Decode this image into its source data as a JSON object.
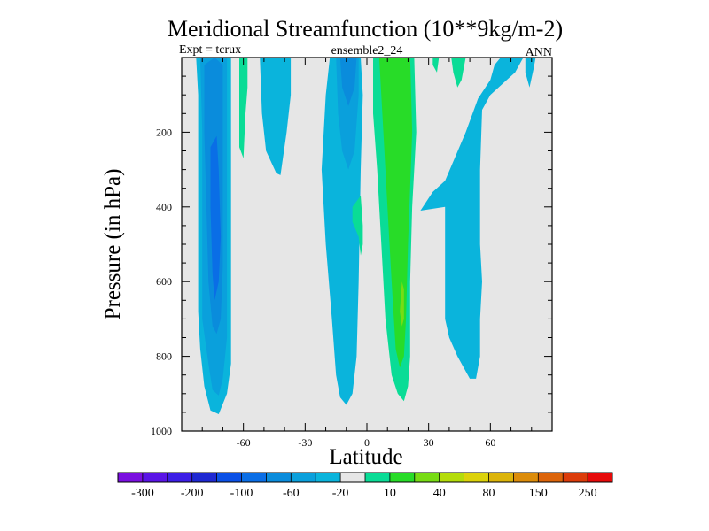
{
  "chart_data": {
    "type": "contour",
    "title": "Meridional Streamfunction (10**9kg/m-2)",
    "subtitle_left": "Expt = tcrux",
    "subtitle_center": "ensemble2_24",
    "subtitle_right": "ANN",
    "xlabel": "Latitude",
    "ylabel": "Pressure (in hPa)",
    "xlim": [
      -90,
      90
    ],
    "ylim": [
      1000,
      0
    ],
    "y_inverted": true,
    "xticks": [
      -60,
      -30,
      0,
      30,
      60
    ],
    "yticks": [
      200,
      400,
      600,
      800,
      1000
    ],
    "background_color": "#e6e6e6",
    "colorbar": {
      "colors": [
        "#7a0fe0",
        "#5a14e6",
        "#3c1ee6",
        "#1e28d2",
        "#0a50e6",
        "#0a6ee6",
        "#0a8cdc",
        "#0aa0dc",
        "#0ab4dc",
        "#e6e6e6",
        "#0adc96",
        "#28dc28",
        "#78dc14",
        "#b4dc0a",
        "#dcd20a",
        "#dcb40a",
        "#dc8c0a",
        "#dc640a",
        "#dc3c0a",
        "#e60a0a"
      ],
      "labels": [
        "-300",
        "-200",
        "-100",
        "-60",
        "-20",
        "10",
        "40",
        "80",
        "150",
        "250"
      ]
    },
    "regions": [
      {
        "name": "sh-cell-outer",
        "level": -20,
        "color": "#0ab4dc",
        "points": [
          [
            -83,
            0
          ],
          [
            -72,
            0
          ],
          [
            -66,
            0
          ],
          [
            -66,
            150
          ],
          [
            -66,
            500
          ],
          [
            -66,
            700
          ],
          [
            -66,
            820
          ],
          [
            -68,
            900
          ],
          [
            -72,
            955
          ],
          [
            -76,
            945
          ],
          [
            -79,
            880
          ],
          [
            -81,
            780
          ],
          [
            -82,
            680
          ],
          [
            -82,
            500
          ],
          [
            -82,
            250
          ],
          [
            -82,
            100
          ]
        ]
      },
      {
        "name": "sh-cell-mid",
        "level": -60,
        "color": "#0aa0dc",
        "points": [
          [
            -81,
            0
          ],
          [
            -72,
            0
          ],
          [
            -68,
            0
          ],
          [
            -68,
            200
          ],
          [
            -68,
            500
          ],
          [
            -68,
            750
          ],
          [
            -70,
            860
          ],
          [
            -72,
            905
          ],
          [
            -75,
            890
          ],
          [
            -77,
            820
          ],
          [
            -80,
            700
          ],
          [
            -80,
            500
          ],
          [
            -80,
            200
          ]
        ]
      },
      {
        "name": "sh-cell-core",
        "level": -100,
        "color": "#0a8cdc",
        "points": [
          [
            -79,
            20
          ],
          [
            -74,
            0
          ],
          [
            -70,
            20
          ],
          [
            -70,
            300
          ],
          [
            -70,
            560
          ],
          [
            -71,
            700
          ],
          [
            -73,
            740
          ],
          [
            -75,
            720
          ],
          [
            -77,
            600
          ],
          [
            -78,
            400
          ],
          [
            -79,
            200
          ]
        ]
      },
      {
        "name": "sh-cell-max",
        "level": -150,
        "color": "#0a6ee6",
        "points": [
          [
            -76,
            240
          ],
          [
            -73,
            210
          ],
          [
            -72,
            300
          ],
          [
            -71,
            480
          ],
          [
            -72,
            600
          ],
          [
            -74,
            650
          ],
          [
            -75,
            580
          ],
          [
            -76,
            400
          ]
        ]
      },
      {
        "name": "band-minus60",
        "level": -20,
        "color": "#0ab4dc",
        "points": [
          [
            -52,
            0
          ],
          [
            -37,
            0
          ],
          [
            -37,
            100
          ],
          [
            -39,
            200
          ],
          [
            -42,
            315
          ],
          [
            -44,
            310
          ],
          [
            -49,
            250
          ],
          [
            -51,
            150
          ]
        ]
      },
      {
        "name": "polar-green-s",
        "level": 10,
        "color": "#0adc96",
        "points": [
          [
            -62,
            0
          ],
          [
            -58,
            0
          ],
          [
            -58,
            80
          ],
          [
            -59,
            150
          ],
          [
            -60,
            270
          ],
          [
            -62,
            240
          ],
          [
            -62,
            100
          ]
        ]
      },
      {
        "name": "deep-cell",
        "level": -20,
        "color": "#0ab4dc",
        "points": [
          [
            -18,
            0
          ],
          [
            -3,
            0
          ],
          [
            -2,
            100
          ],
          [
            -3,
            300
          ],
          [
            -4,
            600
          ],
          [
            -5,
            800
          ],
          [
            -7,
            900
          ],
          [
            -10,
            930
          ],
          [
            -13,
            910
          ],
          [
            -15,
            850
          ],
          [
            -17,
            700
          ],
          [
            -20,
            500
          ],
          [
            -22,
            300
          ],
          [
            -20,
            100
          ]
        ]
      },
      {
        "name": "deep-cell-mid",
        "level": -60,
        "color": "#0aa0dc",
        "points": [
          [
            -15,
            0
          ],
          [
            -4,
            0
          ],
          [
            -4,
            100
          ],
          [
            -6,
            250
          ],
          [
            -9,
            300
          ],
          [
            -12,
            250
          ],
          [
            -14,
            150
          ]
        ]
      },
      {
        "name": "deep-cell-core",
        "level": -100,
        "color": "#0a8cdc",
        "points": [
          [
            -13,
            0
          ],
          [
            -5,
            0
          ],
          [
            -6,
            80
          ],
          [
            -9,
            130
          ],
          [
            -12,
            80
          ]
        ]
      },
      {
        "name": "eq-green-patch",
        "level": 10,
        "color": "#0adc96",
        "points": [
          [
            -7,
            400
          ],
          [
            -3,
            370
          ],
          [
            -2,
            450
          ],
          [
            -2,
            500
          ],
          [
            -3,
            530
          ],
          [
            -4,
            480
          ],
          [
            -7,
            440
          ]
        ]
      },
      {
        "name": "nh-green",
        "level": 10,
        "color": "#0adc96",
        "points": [
          [
            3,
            0
          ],
          [
            23,
            0
          ],
          [
            24,
            200
          ],
          [
            22,
            400
          ],
          [
            21,
            600
          ],
          [
            21,
            800
          ],
          [
            20,
            880
          ],
          [
            18,
            920
          ],
          [
            15,
            900
          ],
          [
            12,
            850
          ],
          [
            9,
            700
          ],
          [
            7,
            500
          ],
          [
            5,
            300
          ],
          [
            3,
            150
          ]
        ]
      },
      {
        "name": "nh-green-core",
        "level": 40,
        "color": "#28dc28",
        "points": [
          [
            6,
            0
          ],
          [
            21,
            0
          ],
          [
            22,
            200
          ],
          [
            20,
            500
          ],
          [
            19,
            700
          ],
          [
            18,
            800
          ],
          [
            16,
            830
          ],
          [
            14,
            780
          ],
          [
            12,
            600
          ],
          [
            10,
            400
          ],
          [
            8,
            200
          ]
        ]
      },
      {
        "name": "nh-green-max",
        "level": 80,
        "color": "#78dc14",
        "points": [
          [
            17,
            600
          ],
          [
            18,
            620
          ],
          [
            18,
            700
          ],
          [
            17,
            720
          ],
          [
            16,
            680
          ]
        ]
      },
      {
        "name": "nh-blue-big",
        "level": -20,
        "color": "#0ab4dc",
        "points": [
          [
            26,
            410
          ],
          [
            32,
            360
          ],
          [
            38,
            330
          ],
          [
            48,
            200
          ],
          [
            54,
            110
          ],
          [
            60,
            60
          ],
          [
            62,
            20
          ],
          [
            65,
            0
          ],
          [
            76,
            0
          ],
          [
            72,
            40
          ],
          [
            68,
            60
          ],
          [
            60,
            100
          ],
          [
            56,
            140
          ],
          [
            55,
            300
          ],
          [
            55,
            500
          ],
          [
            56,
            600
          ],
          [
            55,
            700
          ],
          [
            55,
            800
          ],
          [
            53,
            860
          ],
          [
            50,
            860
          ],
          [
            44,
            800
          ],
          [
            40,
            750
          ],
          [
            38,
            700
          ],
          [
            38,
            400
          ]
        ]
      },
      {
        "name": "nh-green-small1",
        "level": 10,
        "color": "#0adc96",
        "points": [
          [
            32,
            0
          ],
          [
            35,
            0
          ],
          [
            34,
            40
          ],
          [
            32,
            20
          ]
        ]
      },
      {
        "name": "nh-green-small2",
        "level": 10,
        "color": "#0adc96",
        "points": [
          [
            41,
            0
          ],
          [
            48,
            0
          ],
          [
            46,
            60
          ],
          [
            44,
            80
          ],
          [
            42,
            40
          ]
        ]
      },
      {
        "name": "nh-blue-small",
        "level": -20,
        "color": "#0ab4dc",
        "points": [
          [
            77,
            0
          ],
          [
            82,
            0
          ],
          [
            81,
            30
          ],
          [
            79,
            80
          ],
          [
            77,
            40
          ]
        ]
      }
    ]
  }
}
